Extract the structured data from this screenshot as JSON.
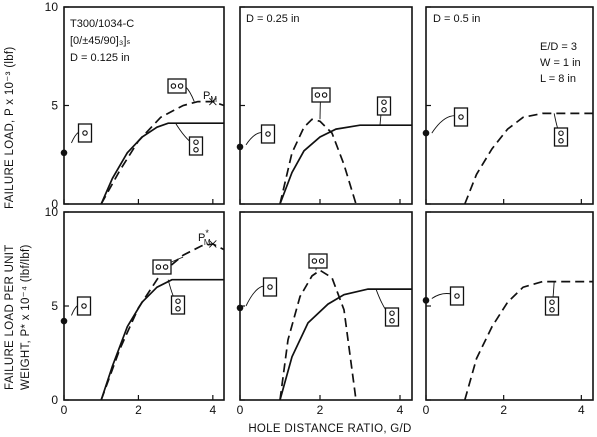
{
  "axes": {
    "x_label": "HOLE DISTANCE RATIO, G/D",
    "y_label_top": "FAILURE LOAD, P x 10⁻³ (lbf)",
    "y_label_bottom_line1": "FAILURE LOAD PER UNIT",
    "y_label_bottom_line2": "WEIGHT, P* x 10⁻⁴ (lbf/lbf)",
    "x_ticks": [
      "0",
      "2",
      "4"
    ],
    "y_ticks": [
      "0",
      "5",
      "10"
    ]
  },
  "annotations": {
    "material": "T300/1034-C",
    "layup": "[0/±45/90]₃]ₛ",
    "d1": "D = 0.125 in",
    "d2": "D = 0.25 in",
    "d3": "D = 0.5 in",
    "ed": "E/D = 3",
    "w": "W = 1 in",
    "l": "L = 8 in",
    "pm": "P",
    "pm_sub": "M",
    "pm_star": "P",
    "pm_star_sup": "*",
    "pm_star_sub": "M"
  },
  "chart_data": [
    {
      "type": "line",
      "panel": "top-left",
      "xlim": [
        0,
        4.3
      ],
      "ylim": [
        0,
        10
      ],
      "ylabel": "FAILURE LOAD, P x 10⁻³ (lbf)",
      "single_hole": {
        "x": 0,
        "y": 2.6
      },
      "series": [
        {
          "style": "solid",
          "points": [
            [
              1.0,
              0.0
            ],
            [
              1.3,
              1.3
            ],
            [
              1.7,
              2.6
            ],
            [
              2.1,
              3.4
            ],
            [
              2.5,
              3.9
            ],
            [
              2.8,
              4.1
            ],
            [
              4.3,
              4.1
            ]
          ]
        },
        {
          "style": "dashed",
          "points": [
            [
              1.0,
              0.0
            ],
            [
              1.5,
              1.7
            ],
            [
              2.0,
              3.2
            ],
            [
              2.6,
              4.4
            ],
            [
              3.2,
              5.0
            ],
            [
              3.6,
              5.2
            ],
            [
              4.0,
              5.2
            ],
            [
              4.3,
              5.0
            ]
          ]
        }
      ],
      "max_marker": {
        "x": 4.0,
        "y": 5.2,
        "label": "P_M"
      }
    },
    {
      "type": "line",
      "panel": "top-middle",
      "xlim": [
        0,
        4.3
      ],
      "ylim": [
        0,
        10
      ],
      "single_hole": {
        "x": 0,
        "y": 2.9
      },
      "series": [
        {
          "style": "solid",
          "points": [
            [
              1.0,
              0.0
            ],
            [
              1.3,
              1.6
            ],
            [
              1.6,
              2.7
            ],
            [
              2.0,
              3.4
            ],
            [
              2.4,
              3.8
            ],
            [
              3.0,
              4.0
            ],
            [
              4.3,
              4.0
            ]
          ]
        },
        {
          "style": "dashed",
          "points": [
            [
              1.0,
              0.0
            ],
            [
              1.3,
              2.6
            ],
            [
              1.6,
              3.9
            ],
            [
              1.8,
              4.3
            ],
            [
              2.0,
              4.2
            ],
            [
              2.3,
              3.6
            ],
            [
              2.6,
              2.0
            ],
            [
              2.9,
              0.0
            ]
          ]
        }
      ]
    },
    {
      "type": "line",
      "panel": "top-right",
      "xlim": [
        0,
        4.3
      ],
      "ylim": [
        0,
        10
      ],
      "single_hole": {
        "x": 0,
        "y": 3.6
      },
      "series": [
        {
          "style": "dashed",
          "points": [
            [
              1.0,
              0.0
            ],
            [
              1.3,
              1.5
            ],
            [
              1.7,
              2.8
            ],
            [
              2.1,
              3.8
            ],
            [
              2.5,
              4.4
            ],
            [
              3.0,
              4.6
            ],
            [
              4.3,
              4.6
            ]
          ]
        }
      ]
    },
    {
      "type": "line",
      "panel": "bottom-left",
      "xlim": [
        0,
        4.3
      ],
      "ylim": [
        0,
        10
      ],
      "ylabel": "FAILURE LOAD PER UNIT WEIGHT, P* x 10⁻⁴ (lbf/lbf)",
      "single_hole": {
        "x": 0,
        "y": 4.2
      },
      "series": [
        {
          "style": "solid",
          "points": [
            [
              1.0,
              0.0
            ],
            [
              1.3,
              1.8
            ],
            [
              1.7,
              3.9
            ],
            [
              2.1,
              5.2
            ],
            [
              2.5,
              6.0
            ],
            [
              2.9,
              6.4
            ],
            [
              4.3,
              6.4
            ]
          ]
        },
        {
          "style": "dashed",
          "points": [
            [
              1.0,
              0.0
            ],
            [
              1.5,
              2.7
            ],
            [
              2.0,
              4.9
            ],
            [
              2.6,
              6.7
            ],
            [
              3.2,
              7.7
            ],
            [
              3.7,
              8.2
            ],
            [
              4.0,
              8.3
            ],
            [
              4.3,
              8.0
            ]
          ]
        }
      ],
      "max_marker": {
        "x": 4.0,
        "y": 8.3,
        "label": "P*_M"
      }
    },
    {
      "type": "line",
      "panel": "bottom-middle",
      "xlim": [
        0,
        4.3
      ],
      "ylim": [
        0,
        10
      ],
      "single_hole": {
        "x": 0,
        "y": 4.9
      },
      "series": [
        {
          "style": "solid",
          "points": [
            [
              1.0,
              0.0
            ],
            [
              1.3,
              2.3
            ],
            [
              1.7,
              4.1
            ],
            [
              2.2,
              5.1
            ],
            [
              2.6,
              5.6
            ],
            [
              3.2,
              5.9
            ],
            [
              4.3,
              5.9
            ]
          ]
        },
        {
          "style": "dashed",
          "points": [
            [
              1.0,
              0.0
            ],
            [
              1.2,
              3.2
            ],
            [
              1.5,
              5.5
            ],
            [
              1.8,
              6.6
            ],
            [
              2.0,
              6.9
            ],
            [
              2.3,
              6.5
            ],
            [
              2.6,
              4.8
            ],
            [
              2.9,
              0.0
            ]
          ]
        }
      ]
    },
    {
      "type": "line",
      "panel": "bottom-right",
      "xlim": [
        0,
        4.3
      ],
      "ylim": [
        0,
        10
      ],
      "single_hole": {
        "x": 0,
        "y": 5.3
      },
      "series": [
        {
          "style": "dashed",
          "points": [
            [
              1.0,
              0.0
            ],
            [
              1.3,
              2.2
            ],
            [
              1.7,
              3.9
            ],
            [
              2.1,
              5.2
            ],
            [
              2.5,
              6.0
            ],
            [
              3.0,
              6.3
            ],
            [
              4.3,
              6.3
            ]
          ]
        }
      ]
    }
  ]
}
